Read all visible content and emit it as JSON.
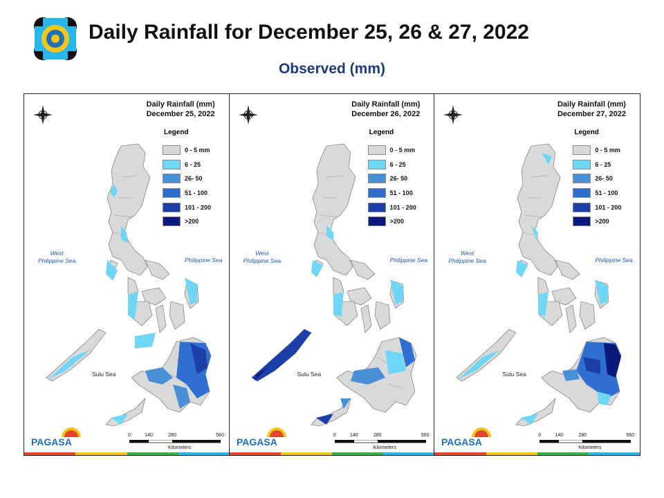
{
  "header": {
    "title": "Daily Rainfall for December 25, 26 & 27, 2022",
    "subtitle": "Observed (mm)"
  },
  "legend": {
    "title": "Legend",
    "items": [
      {
        "label": "0 - 5 mm",
        "color": "#d9d9d9"
      },
      {
        "label": "6 - 25",
        "color": "#70d6f5"
      },
      {
        "label": "26- 50",
        "color": "#4a90d9"
      },
      {
        "label": "51 - 100",
        "color": "#2e6fd1"
      },
      {
        "label": "101 - 200",
        "color": "#1c3fa8"
      },
      {
        "label": ">200",
        "color": "#0b1a7a"
      }
    ]
  },
  "panels": [
    {
      "title_line1": "Daily Rainfall (mm)",
      "title_line2": "December 25, 2022"
    },
    {
      "title_line1": "Daily Rainfall (mm)",
      "title_line2": "December 26, 2022"
    },
    {
      "title_line1": "Daily Rainfall (mm)",
      "title_line2": "December 27, 2022"
    }
  ],
  "labels": {
    "west_sea_1": "West",
    "west_sea_2": "Philippine Sea",
    "philippine_sea": "Philippine Sea",
    "sulu_sea": "Sulu Sea",
    "scale_0": "0",
    "scale_1": "140",
    "scale_2": "280",
    "scale_3": "560",
    "scale_unit": "Kilometers",
    "compass_n": "N",
    "compass_s": "S",
    "compass_e": "E",
    "compass_w": "W",
    "logo_text": "PAGASA"
  },
  "colors": {
    "land_gray": "#d9d9d9",
    "title_blue": "#1f3a78"
  }
}
